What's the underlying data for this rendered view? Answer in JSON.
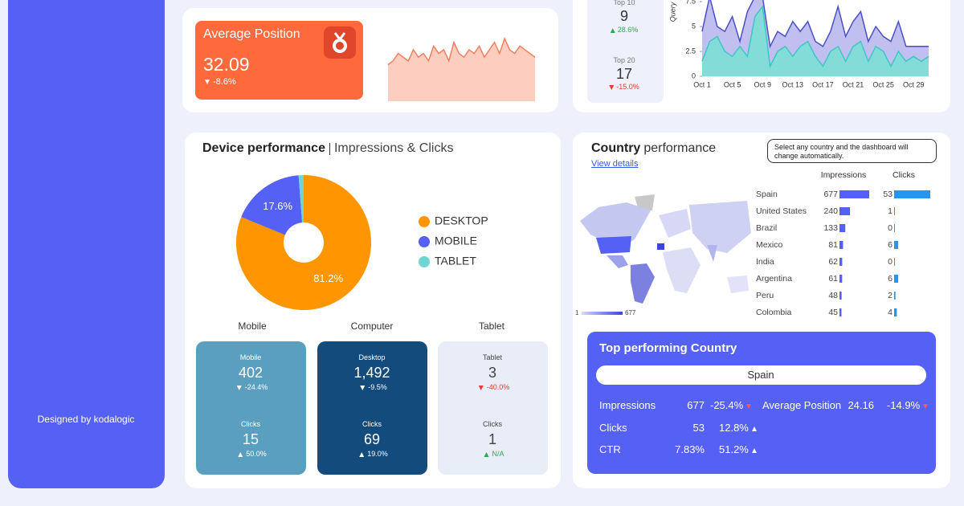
{
  "sidebar": {
    "credit": "Designed by kodalogic"
  },
  "average_position": {
    "title": "Average Position",
    "value": 32.09,
    "change": "-8.6%",
    "direction": "down"
  },
  "rank_summary": [
    {
      "label": "Top 10",
      "value": 9,
      "change": "28.6%",
      "direction": "up"
    },
    {
      "label": "Top 20",
      "value": 17,
      "change": "-15.0%",
      "direction": "down"
    }
  ],
  "device_performance": {
    "title": "Device performance",
    "subtitle": "Impressions & Clicks",
    "columns": [
      "Mobile",
      "Computer",
      "Tablet"
    ],
    "tiles": [
      {
        "label": "Mobile",
        "value": 402,
        "change": "-24.4%",
        "direction": "down",
        "clicks_label": "Clicks",
        "clicks": 15,
        "clicks_change": "50.0%",
        "clicks_direction": "up"
      },
      {
        "label": "Desktop",
        "value": "1,492",
        "change": "-9.5%",
        "direction": "down",
        "clicks_label": "Clicks",
        "clicks": 69,
        "clicks_change": "19.0%",
        "clicks_direction": "up"
      },
      {
        "label": "Tablet",
        "value": 3,
        "change": "-40.0%",
        "direction": "down",
        "clicks_label": "Clicks",
        "clicks": 1,
        "clicks_change": "N/A",
        "clicks_direction": "up"
      }
    ]
  },
  "country_performance": {
    "title": "Country",
    "title_rest": "performance",
    "link": "View details",
    "note": "Select any country and the dashboard will change automatically.",
    "legend_min": 1,
    "legend_max": 677
  },
  "top_country": {
    "title": "Top performing Country",
    "country": "Spain",
    "metrics": [
      {
        "label": "Impressions",
        "value": 677,
        "change": "-25.4%",
        "direction": "down"
      },
      {
        "label": "Average Position",
        "value": 24.16,
        "change": "-14.9%",
        "direction": "down"
      },
      {
        "label": "Clicks",
        "value": 53,
        "change": "12.8%",
        "direction": "up"
      },
      {
        "label": "CTR",
        "value": "7.83%",
        "change": "51.2%",
        "direction": "up"
      }
    ]
  },
  "chart_data": [
    {
      "type": "area",
      "color": "#f08060",
      "fill": "#fdc9b9",
      "values": [
        30,
        31,
        33,
        32,
        31,
        34,
        32,
        33,
        31,
        35,
        33,
        34,
        31,
        36,
        33,
        32,
        34,
        33,
        35,
        32,
        34,
        36,
        33,
        37,
        34,
        33,
        35,
        34,
        33,
        32
      ]
    },
    {
      "type": "area",
      "y_label": "Query",
      "ylim": [
        0,
        7.5
      ],
      "yticks": [
        0,
        2.5,
        5,
        7.5
      ],
      "categories": [
        "Oct 1",
        null,
        null,
        null,
        "Oct 5",
        null,
        null,
        null,
        "Oct 9",
        null,
        null,
        null,
        "Oct 13",
        null,
        null,
        null,
        "Oct 17",
        null,
        null,
        null,
        "Oct 21",
        null,
        null,
        null,
        "Oct 25",
        null,
        null,
        null,
        "Oct 29",
        null,
        null
      ],
      "series": [
        {
          "color": "#4a4fc4",
          "fill": "#b9b8ee",
          "values": [
            4.5,
            8,
            5,
            4.5,
            6,
            3.5,
            6.5,
            8,
            8,
            3,
            4.5,
            4,
            5.5,
            4.5,
            5.5,
            3.5,
            3,
            4.5,
            7,
            4,
            5.5,
            6.5,
            3.5,
            5,
            4,
            3.5,
            5.5,
            3,
            3,
            3,
            3
          ]
        },
        {
          "color": "#3fc6c6",
          "fill": "#7ddfd6",
          "values": [
            1.5,
            3.5,
            4,
            2.5,
            2,
            3,
            2,
            6,
            7,
            1,
            2.5,
            3,
            2,
            3,
            3.5,
            2,
            1,
            2.5,
            3,
            1.5,
            3,
            3.5,
            1.5,
            3,
            2.5,
            1,
            2.5,
            1.5,
            2,
            1.5,
            2
          ]
        }
      ]
    },
    {
      "type": "pie",
      "categories": [
        "DESKTOP",
        "MOBILE",
        "TABLET"
      ],
      "values": [
        81.2,
        17.6,
        1.2
      ],
      "value_labels": [
        "81.2%",
        "17.6%",
        null
      ],
      "colors": [
        "#ff9500",
        "#5561f5",
        "#6dd5d3"
      ]
    },
    {
      "type": "bar",
      "orientation": "horizontal",
      "categories": [
        "Spain",
        "United States",
        "Brazil",
        "Mexico",
        "India",
        "Argentina",
        "Peru",
        "Colombia"
      ],
      "series": [
        {
          "name": "Impressions",
          "color": "#5561f5",
          "values": [
            677,
            240,
            133,
            81,
            62,
            61,
            48,
            45
          ]
        },
        {
          "name": "Clicks",
          "color": "#2196f3",
          "values": [
            53,
            1,
            0,
            6,
            0,
            6,
            2,
            4
          ]
        }
      ]
    }
  ]
}
